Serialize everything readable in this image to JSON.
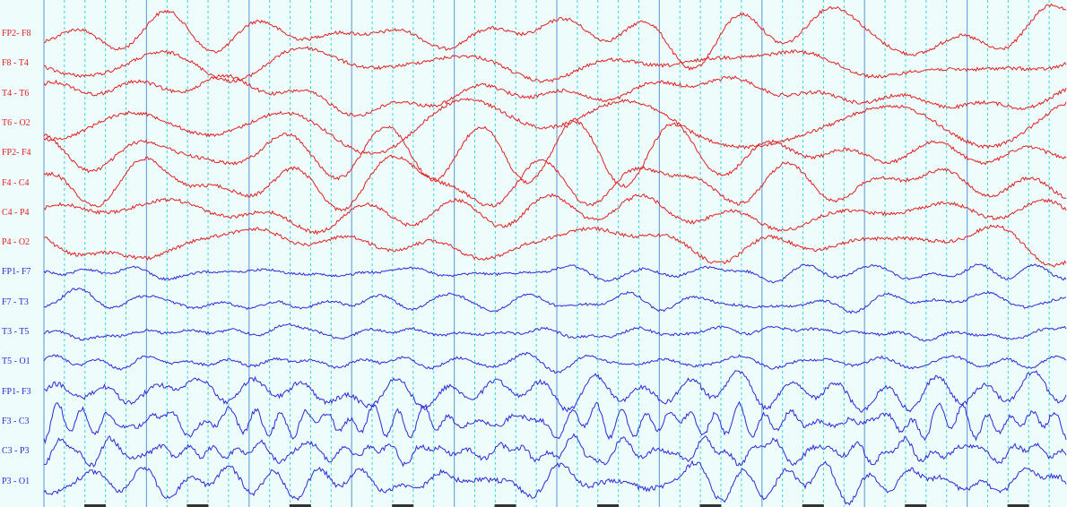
{
  "montage": {
    "channels": [
      {
        "label": "FP2- F8",
        "color": "#e02020"
      },
      {
        "label": "F8 - T4",
        "color": "#e02020"
      },
      {
        "label": "T4 - T6",
        "color": "#e02020"
      },
      {
        "label": "T6 - O2",
        "color": "#e02020"
      },
      {
        "label": "FP2- F4",
        "color": "#e02020"
      },
      {
        "label": "F4 - C4",
        "color": "#e02020"
      },
      {
        "label": "C4 - P4",
        "color": "#e02020"
      },
      {
        "label": "P4 - O2",
        "color": "#e02020"
      },
      {
        "label": "FP1- F7",
        "color": "#2a2ad8"
      },
      {
        "label": "F7 - T3",
        "color": "#2a2ad8"
      },
      {
        "label": "T3 - T5",
        "color": "#2a2ad8"
      },
      {
        "label": "T5 - O1",
        "color": "#2a2ad8"
      },
      {
        "label": "FP1- F3",
        "color": "#2a2ad8"
      },
      {
        "label": "F3 - C3",
        "color": "#2a2ad8"
      },
      {
        "label": "C3 - P3",
        "color": "#2a2ad8"
      },
      {
        "label": "P3 - O1",
        "color": "#2a2ad8"
      }
    ]
  },
  "colors": {
    "background": "#eefcfc",
    "second_line": "#6fa8dc",
    "subdivision_line": "#33d6e0"
  }
}
